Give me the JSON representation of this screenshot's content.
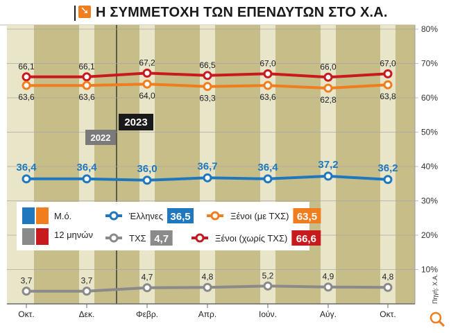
{
  "title": "Η ΣΥΜΜΕΤΟΧΗ ΤΩΝ ΕΠΕΝΔΥΤΩΝ ΣΤΟ Χ.Α.",
  "title_icon": "arrow-down-right-icon",
  "source": "Πηγή: Χ.Α.",
  "colors": {
    "blue": "#1f78bd",
    "orange": "#f07d1e",
    "red": "#c8191e",
    "gray": "#8a8a8a",
    "band_light": "#e9e5c8",
    "band_dark": "#c6bd88"
  },
  "chart_data": {
    "type": "line",
    "categories": [
      "Οκτ.",
      "Δεκ.",
      "Φεβρ.",
      "Απρ.",
      "Ιούν.",
      "Αύγ.",
      "Οκτ."
    ],
    "year_markers": [
      "2022",
      "2023"
    ],
    "ylim": [
      0,
      80
    ],
    "yticks": [
      "10%",
      "20%",
      "30%",
      "40%",
      "50%",
      "60%",
      "70%",
      "80%"
    ],
    "series": [
      {
        "name": "Ξένοι (χωρίς ΤΧΣ)",
        "color": "#c8191e",
        "values": [
          66.1,
          66.1,
          67.2,
          66.5,
          67.0,
          66.0,
          67.0
        ],
        "labels": [
          "66,1",
          "66,1",
          "67,2",
          "66,5",
          "67,0",
          "66,0",
          "67,0"
        ],
        "label_pos": "above"
      },
      {
        "name": "Ξένοι (με ΤΧΣ)",
        "color": "#f07d1e",
        "values": [
          63.6,
          63.6,
          64.0,
          63.3,
          63.6,
          62.8,
          63.8
        ],
        "labels": [
          "63,6",
          "63,6",
          "64,0",
          "63,3",
          "63,6",
          "62,8",
          "63,8"
        ],
        "label_pos": "below"
      },
      {
        "name": "Έλληνες",
        "color": "#1f78bd",
        "values": [
          36.4,
          36.4,
          36.0,
          36.7,
          36.4,
          37.2,
          36.2
        ],
        "labels": [
          "36,4",
          "36,4",
          "36,0",
          "36,7",
          "36,4",
          "37,2",
          "36,2"
        ],
        "label_pos": "above"
      },
      {
        "name": "ΤΧΣ",
        "color": "#8a8a8a",
        "values": [
          3.7,
          3.7,
          4.7,
          4.8,
          5.2,
          4.9,
          4.8
        ],
        "labels": [
          "3,7",
          "3,7",
          "4,7",
          "4,8",
          "5,2",
          "4,9",
          "4,8"
        ],
        "label_pos": "above"
      }
    ],
    "legend": {
      "period_labels": [
        "Μ.ό.",
        "12 μηνών"
      ],
      "entries": [
        {
          "name": "Έλληνες",
          "avg": "36,5",
          "color": "#1f78bd"
        },
        {
          "name": "Ξένοι (με ΤΧΣ)",
          "avg": "63,5",
          "color": "#f07d1e"
        },
        {
          "name": "ΤΧΣ",
          "avg": "4,7",
          "color": "#8a8a8a"
        },
        {
          "name": "Ξένοι (χωρίς ΤΧΣ)",
          "avg": "66,6",
          "color": "#c8191e"
        }
      ]
    }
  }
}
